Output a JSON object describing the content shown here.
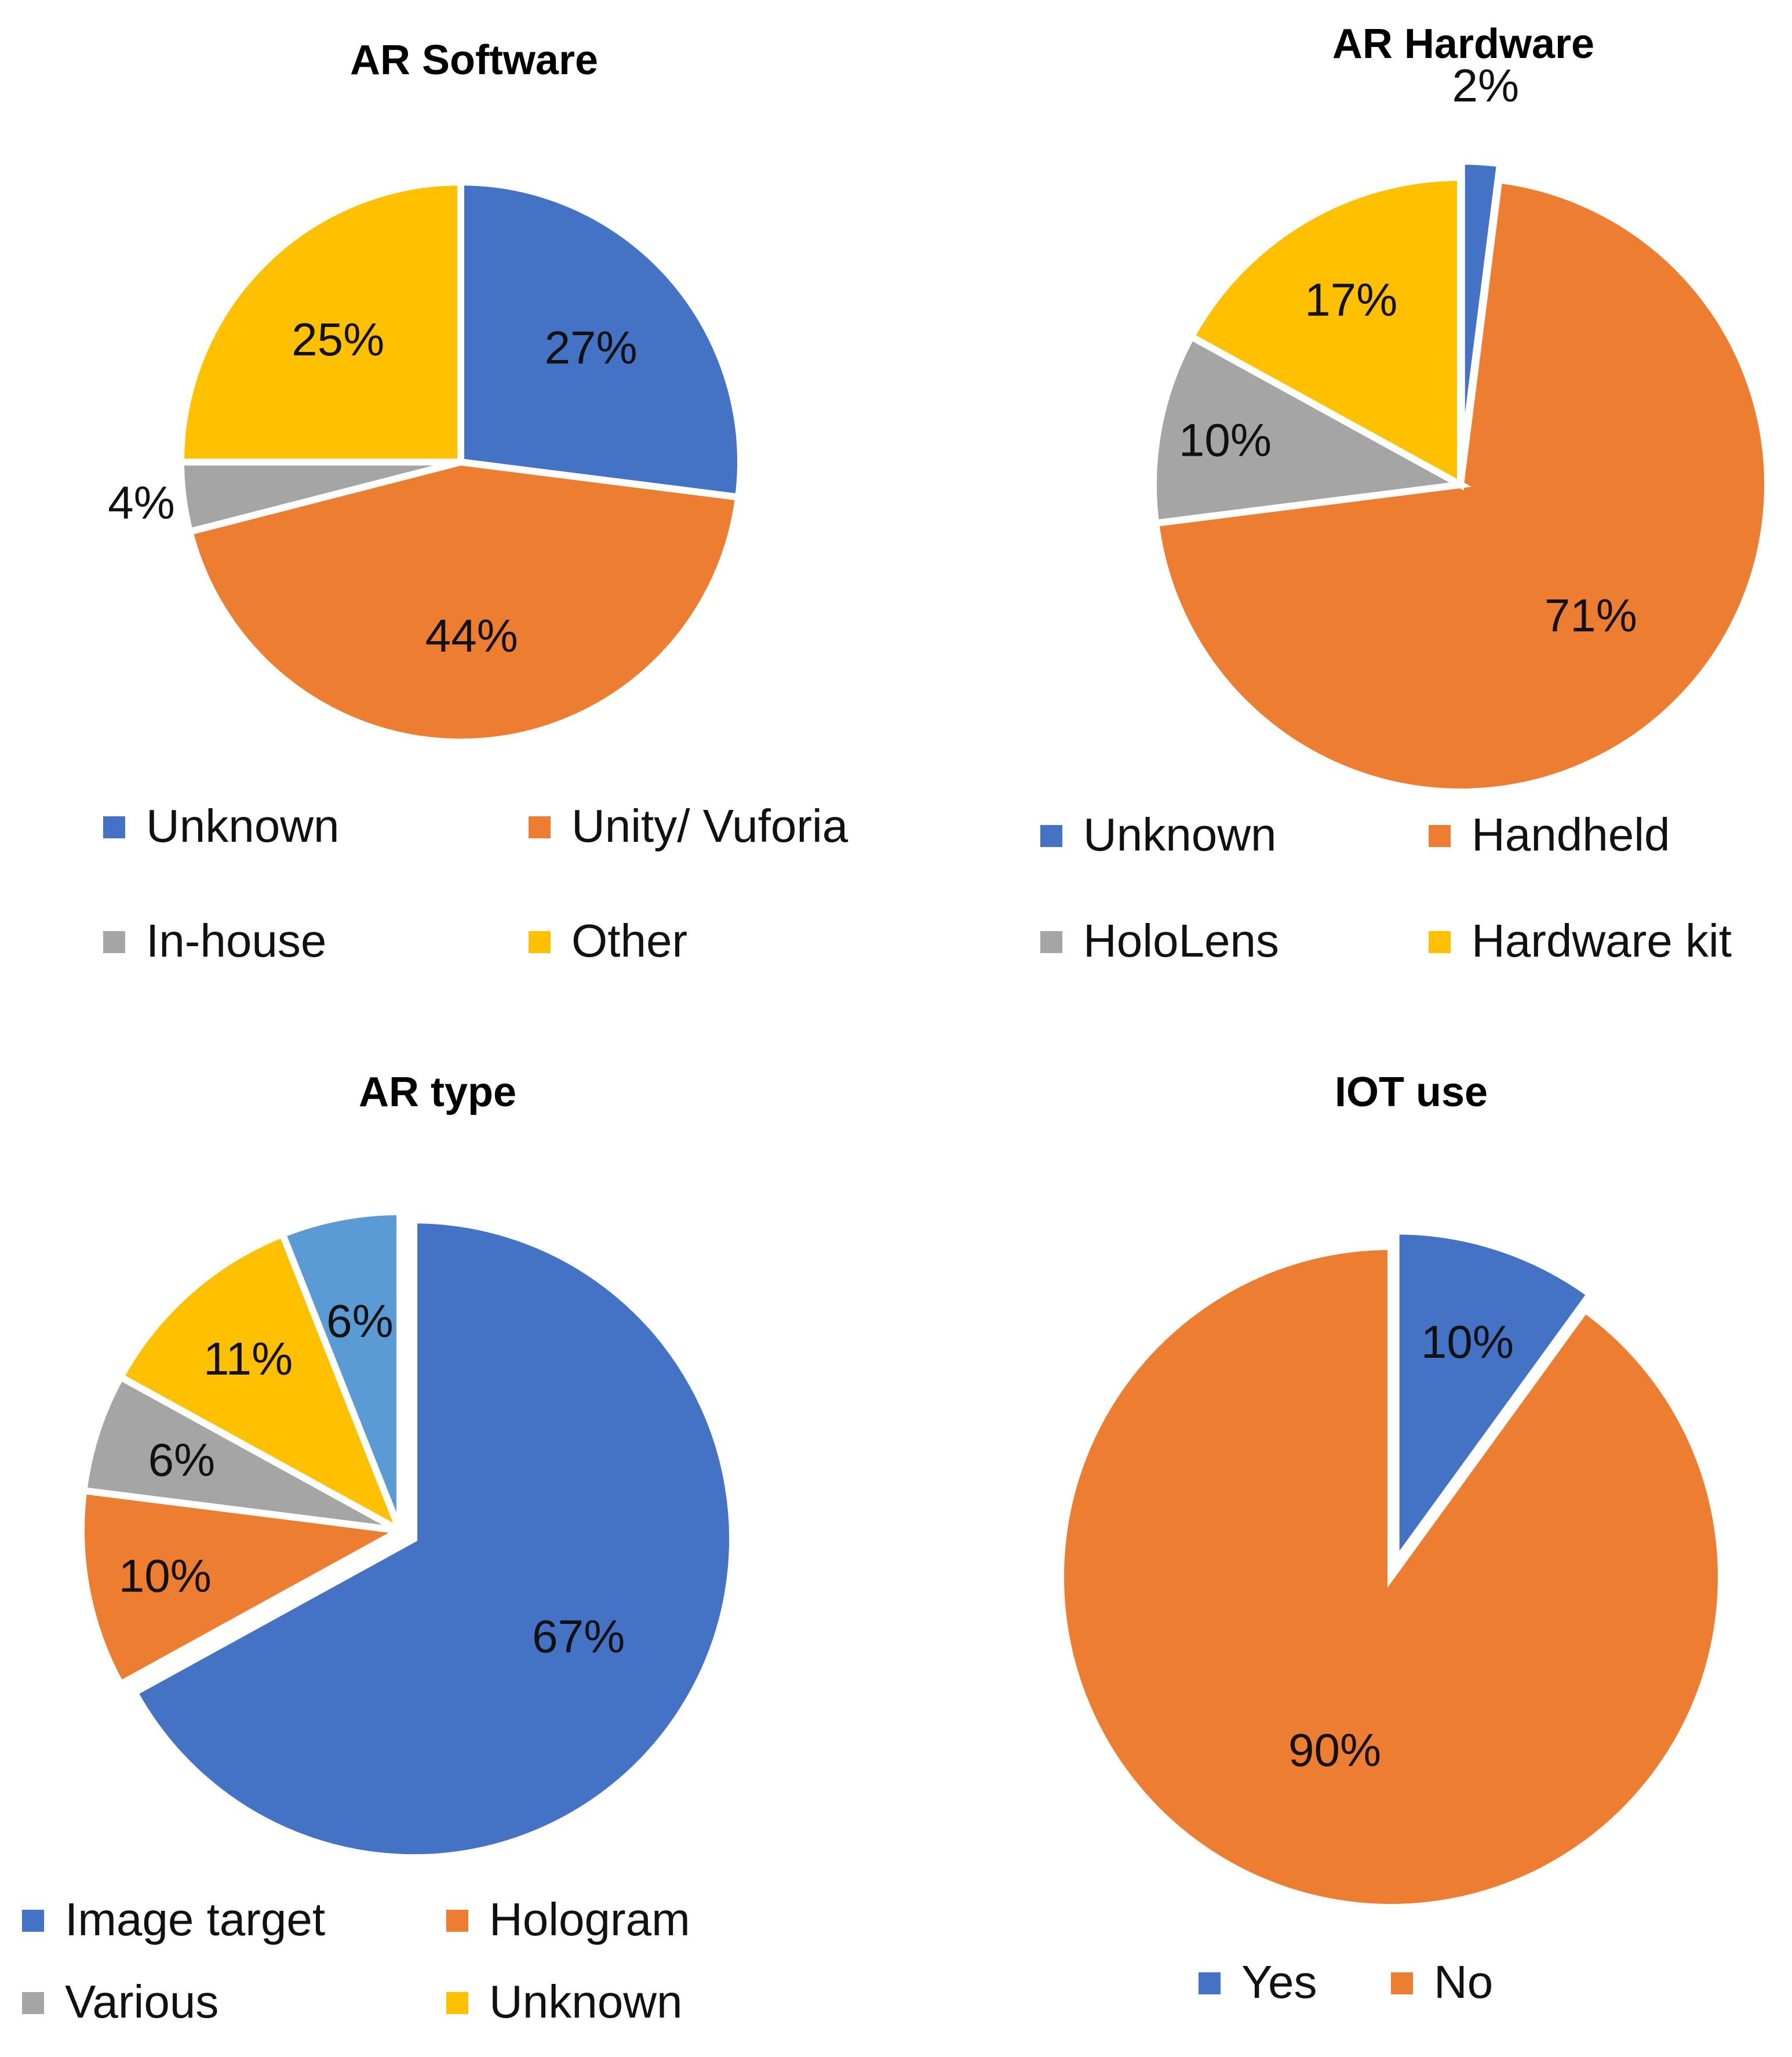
{
  "chart_data": [
    {
      "type": "pie",
      "title": "AR Software",
      "categories": [
        "Unknown",
        "Unity/ Vuforia",
        "In-house",
        "Other"
      ],
      "values": [
        27,
        44,
        4,
        25
      ],
      "labels": [
        "27%",
        "44%",
        "4%",
        "25%"
      ],
      "colors": [
        "#4472C4",
        "#ED7D31",
        "#A5A5A5",
        "#FFC000"
      ],
      "legend": "bottom"
    },
    {
      "type": "pie",
      "title": "AR Hardware",
      "categories": [
        "Unknown",
        "Handheld",
        "HoloLens",
        "Hardware kit"
      ],
      "values": [
        2,
        71,
        10,
        17
      ],
      "labels": [
        "2%",
        "71%",
        "10%",
        "17%"
      ],
      "colors": [
        "#4472C4",
        "#ED7D31",
        "#A5A5A5",
        "#FFC000"
      ],
      "legend": "bottom"
    },
    {
      "type": "pie",
      "title": "AR type",
      "categories": [
        "Image target",
        "Hologram",
        "Various",
        "Unknown",
        ""
      ],
      "values": [
        67,
        10,
        6,
        11,
        6
      ],
      "labels": [
        "67%",
        "10%",
        "6%",
        "11%",
        "6%"
      ],
      "colors": [
        "#4472C4",
        "#ED7D31",
        "#A5A5A5",
        "#FFC000",
        "#5B9BD5"
      ],
      "legend": "bottom"
    },
    {
      "type": "pie",
      "title": "IOT use",
      "categories": [
        "Yes",
        "No"
      ],
      "values": [
        10,
        90
      ],
      "labels": [
        "10%",
        "90%"
      ],
      "colors": [
        "#4472C4",
        "#ED7D31"
      ],
      "legend": "bottom"
    }
  ]
}
